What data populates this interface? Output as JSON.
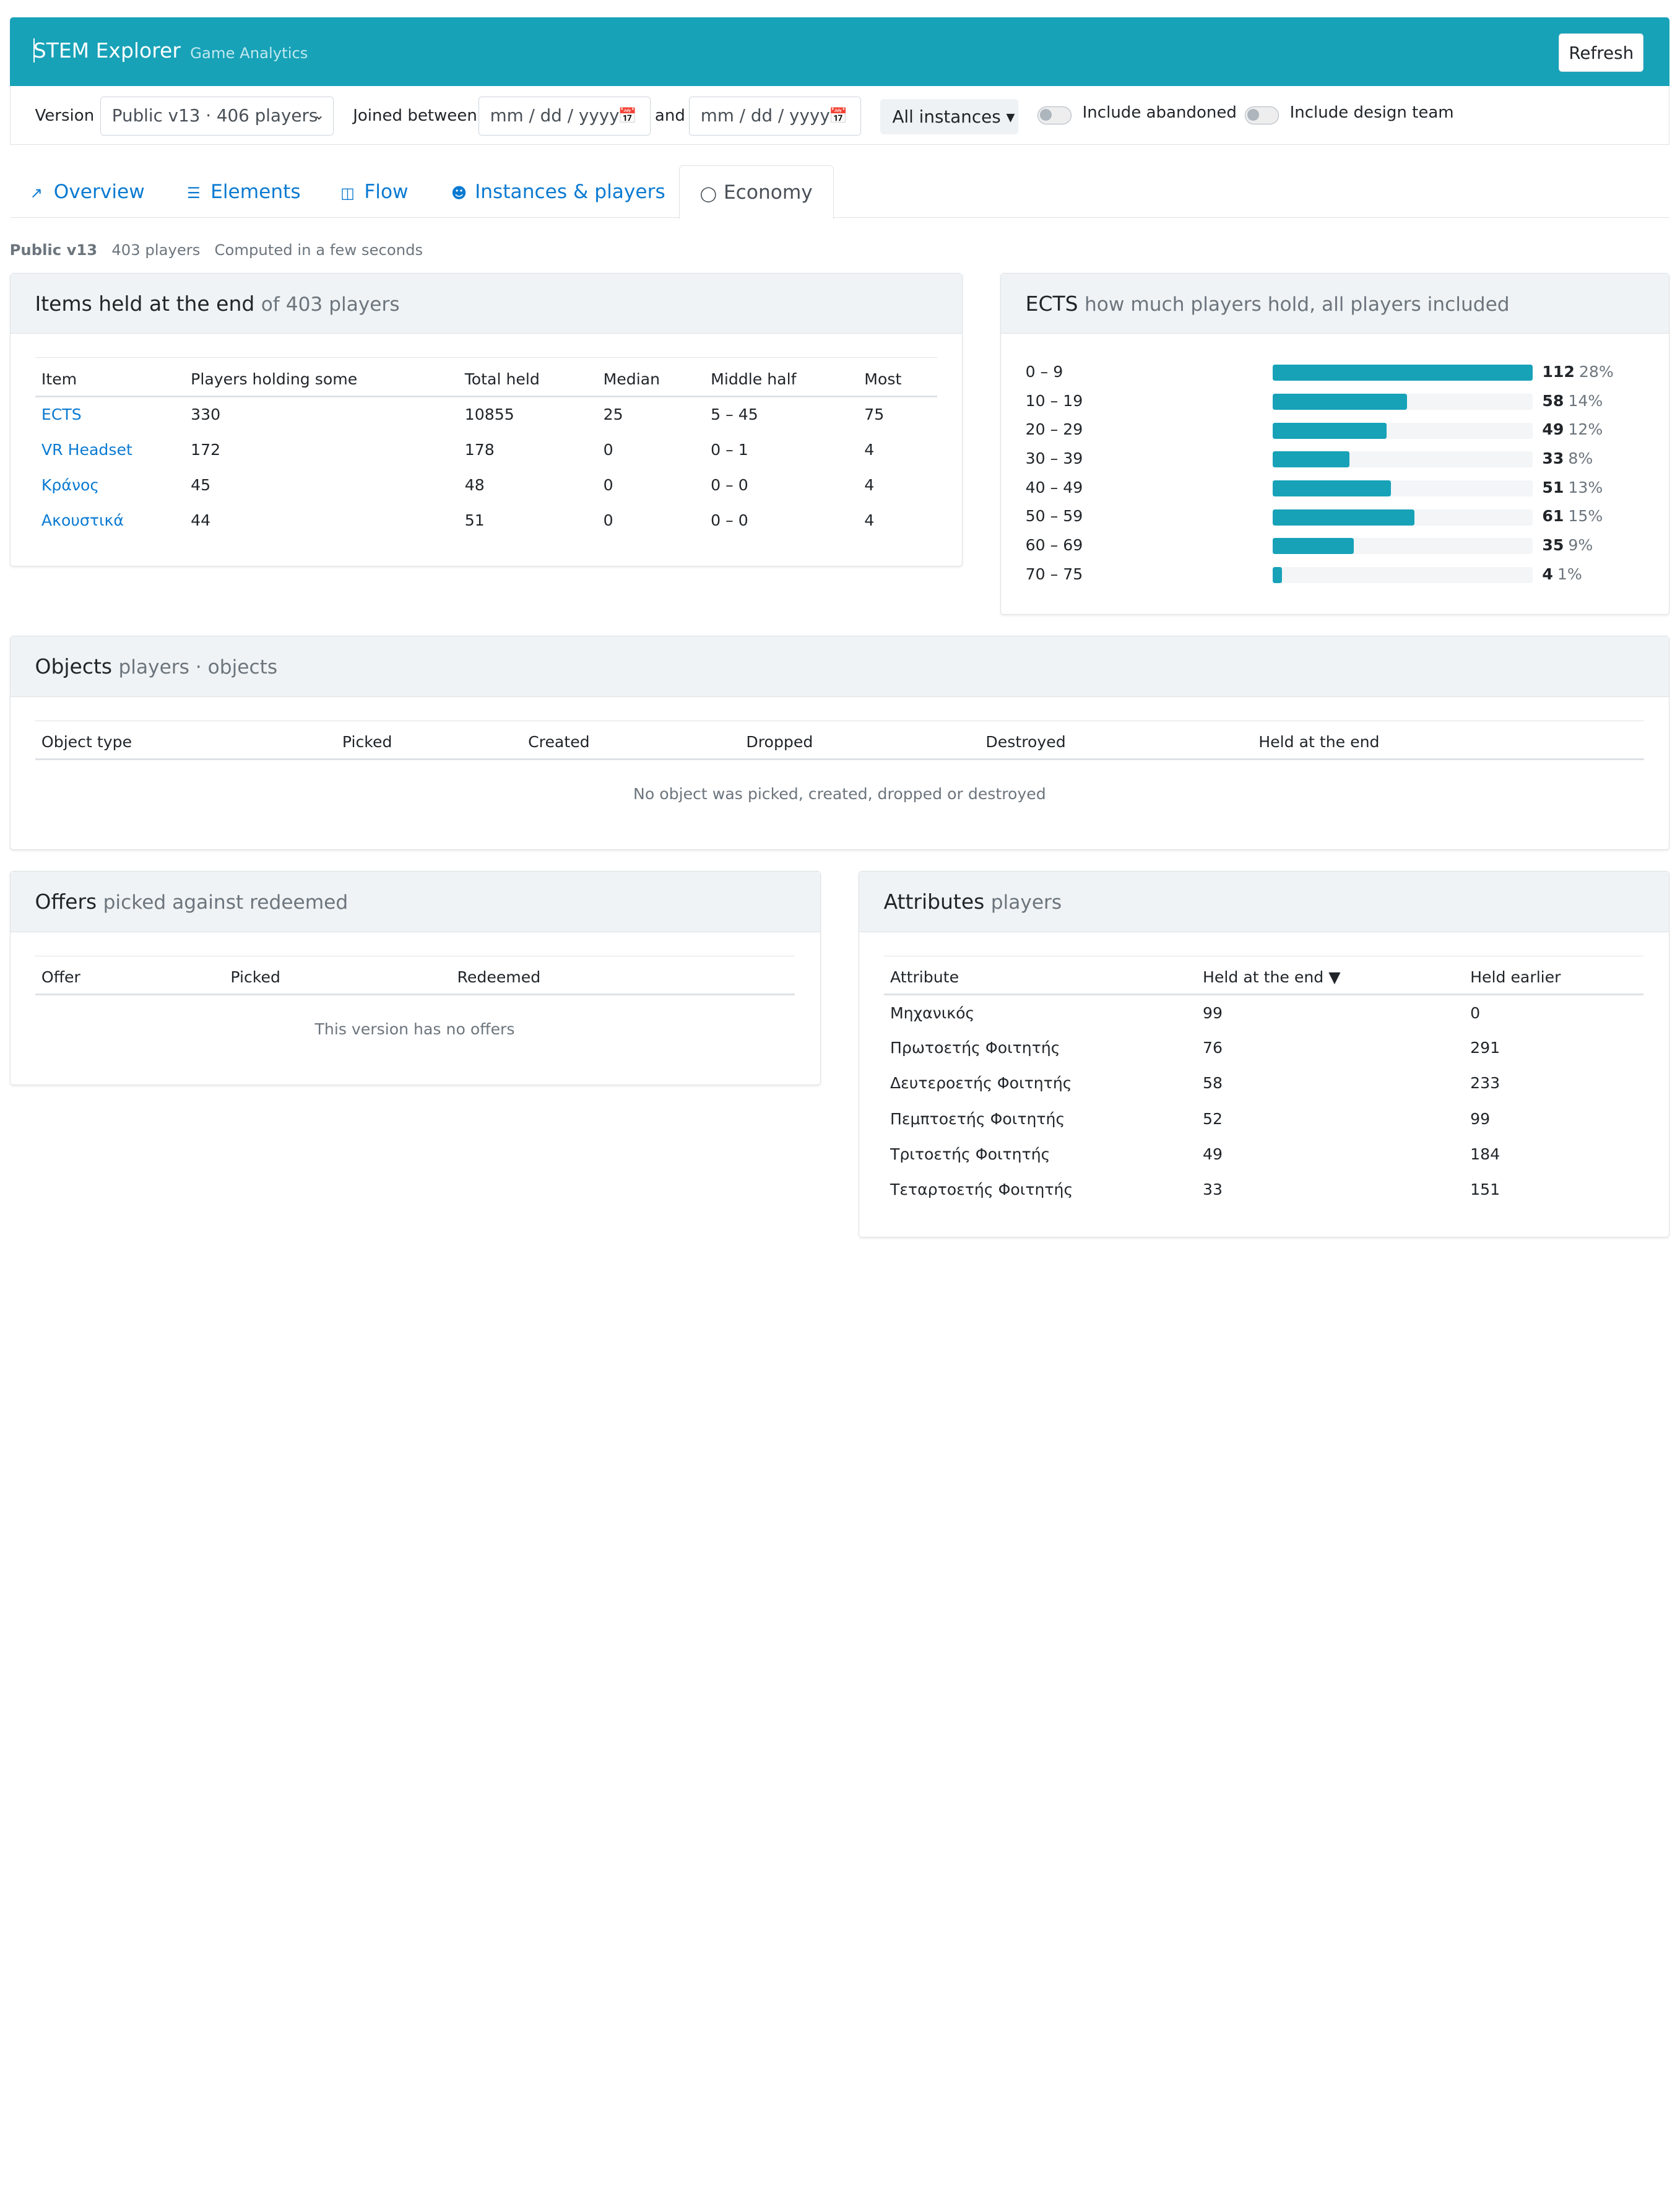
{
  "app": {
    "title": "STEM Explorer",
    "subtitle": "Game Analytics",
    "refresh_label": "Refresh"
  },
  "filters": {
    "version_label": "Version",
    "version_value": "Public v13 · 406 players",
    "joined_label": "Joined between",
    "date_placeholder_from": "mm / dd / yyyy",
    "and_label": "and",
    "date_placeholder_to": "mm / dd / yyyy",
    "instances_label": "All instances ▾",
    "toggle_abandoned": "Include abandoned",
    "toggle_design": "Include design team"
  },
  "tabs": [
    {
      "label": "Overview",
      "icon": "chart-line-icon",
      "active": false
    },
    {
      "label": "Elements",
      "icon": "list-icon",
      "active": false
    },
    {
      "label": "Flow",
      "icon": "sitemap-icon",
      "active": false
    },
    {
      "label": "Instances & players",
      "icon": "users-icon",
      "active": false
    },
    {
      "label": "Economy",
      "icon": "piggy-bank-icon",
      "active": true
    }
  ],
  "meta": {
    "version": "Public v13",
    "players": "403 players",
    "computed": "Computed in a few seconds"
  },
  "items_card": {
    "title": "Items held at the end",
    "subtitle": "of 403 players",
    "columns": [
      "Item",
      "Players holding some",
      "Total held",
      "Median",
      "Middle half",
      "Most"
    ],
    "rows": [
      [
        "ECTS",
        "330",
        "10855",
        "25",
        "5 – 45",
        "75"
      ],
      [
        "VR Headset",
        "172",
        "178",
        "0",
        "0 – 1",
        "4"
      ],
      [
        "Κράνος",
        "45",
        "48",
        "0",
        "0 – 0",
        "4"
      ],
      [
        "Ακουστικά",
        "44",
        "51",
        "0",
        "0 – 0",
        "4"
      ]
    ]
  },
  "ects_card": {
    "title": "ECTS",
    "subtitle": "how much players hold, all players included",
    "bins": [
      {
        "label": "0 – 9",
        "count": "112",
        "pct": "28%",
        "value": 112
      },
      {
        "label": "10 – 19",
        "count": "58",
        "pct": "14%",
        "value": 58
      },
      {
        "label": "20 – 29",
        "count": "49",
        "pct": "12%",
        "value": 49
      },
      {
        "label": "30 – 39",
        "count": "33",
        "pct": "8%",
        "value": 33
      },
      {
        "label": "40 – 49",
        "count": "51",
        "pct": "13%",
        "value": 51
      },
      {
        "label": "50 – 59",
        "count": "61",
        "pct": "15%",
        "value": 61
      },
      {
        "label": "60 – 69",
        "count": "35",
        "pct": "9%",
        "value": 35
      },
      {
        "label": "70 – 75",
        "count": "4",
        "pct": "1%",
        "value": 4
      }
    ],
    "max": 112
  },
  "objects_card": {
    "title": "Objects",
    "subtitle": "players · objects",
    "columns": [
      "Object type",
      "Picked",
      "Created",
      "Dropped",
      "Destroyed",
      "Held at the end"
    ],
    "empty": "No object was picked, created, dropped or destroyed"
  },
  "offers_card": {
    "title": "Offers",
    "subtitle": "picked against redeemed",
    "columns": [
      "Offer",
      "Picked",
      "Redeemed"
    ],
    "empty": "This version has no offers"
  },
  "attributes_card": {
    "title": "Attributes",
    "subtitle": "players",
    "columns": [
      "Attribute",
      "Held at the end ▼",
      "Held earlier"
    ],
    "rows": [
      [
        "Μηχανικός",
        "99",
        "0"
      ],
      [
        "Πρωτοετής Φοιτητής",
        "76",
        "291"
      ],
      [
        "Δευτεροετής Φοιτητής",
        "58",
        "233"
      ],
      [
        "Πεμπτοετής Φοιτητής",
        "52",
        "99"
      ],
      [
        "Τριτοετής Φοιτητής",
        "49",
        "184"
      ],
      [
        "Τεταρτοετής Φοιτητής",
        "33",
        "151"
      ]
    ]
  }
}
